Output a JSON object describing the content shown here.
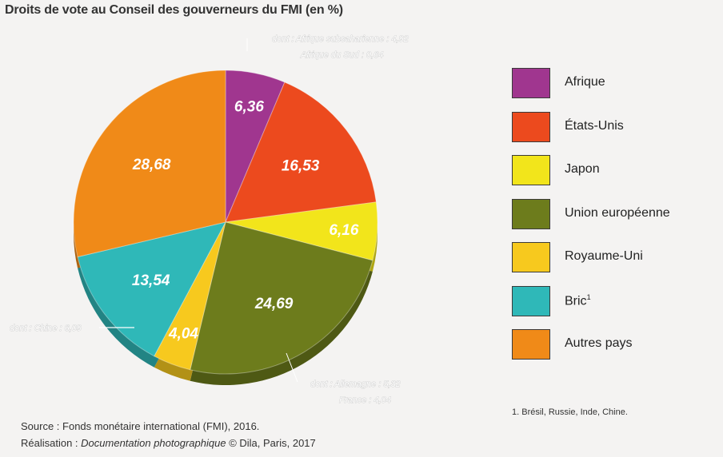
{
  "title": "Droits de vote au Conseil des gouverneurs du FMI (en %)",
  "chart_data": {
    "type": "pie",
    "title": "Droits de vote au Conseil des gouverneurs du FMI (en %)",
    "slices": [
      {
        "label": "Afrique",
        "value": 6.36,
        "value_label": "6,36",
        "color": "#a0368f"
      },
      {
        "label": "États-Unis",
        "value": 16.53,
        "value_label": "16,53",
        "color": "#ec4a1e"
      },
      {
        "label": "Japon",
        "value": 6.16,
        "value_label": "6,16",
        "color": "#f2e51b"
      },
      {
        "label": "Union européenne",
        "value": 24.69,
        "value_label": "24,69",
        "color": "#6d7c1c"
      },
      {
        "label": "Royaume-Uni",
        "value": 4.04,
        "value_label": "4,04",
        "color": "#f7c91e"
      },
      {
        "label": "Bric",
        "value": 13.54,
        "value_label": "13,54",
        "color": "#2fb8b8"
      },
      {
        "label": "Autres pays",
        "value": 28.68,
        "value_label": "28,68",
        "color": "#f08a18"
      }
    ],
    "legend_placement": "right",
    "annotations": {
      "afrique_1": "dont : Afrique subsaharienne : 4,92",
      "afrique_2": "Afrique du Sud : 0,64",
      "bric": "dont : Chine : 6,09",
      "ue_1": "dont : Allemagne : 5,32",
      "ue_2": "France : 4,04"
    }
  },
  "legend": [
    {
      "label": "Afrique",
      "color": "#a0368f"
    },
    {
      "label": "États-Unis",
      "color": "#ec4a1e"
    },
    {
      "label": "Japon",
      "color": "#f2e51b"
    },
    {
      "label": "Union européenne",
      "color": "#6d7c1c"
    },
    {
      "label": "Royaume-Uni",
      "color": "#f7c91e"
    },
    {
      "label": "Bric",
      "sup": "1",
      "color": "#2fb8b8"
    },
    {
      "label": "Autres pays",
      "color": "#f08a18"
    }
  ],
  "footnote": "1. Brésil, Russie, Inde, Chine.",
  "source": "Source : Fonds monétaire international (FMI), 2016.",
  "credit": {
    "prefix": "Réalisation : ",
    "publication": "Documentation photographique",
    "suffix": " © Dila, Paris, 2017"
  }
}
